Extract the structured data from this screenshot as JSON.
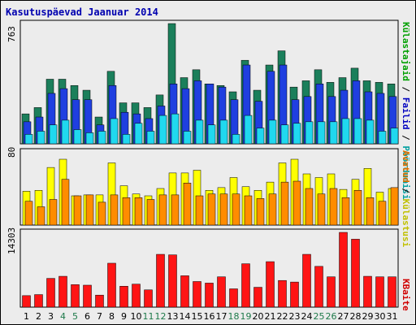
{
  "title": "Kasutuspäevad Jaanuar 2014",
  "legend": {
    "top": [
      {
        "text": "Külastajaid",
        "color": "#00a000"
      },
      {
        "text": " / ",
        "color": "#000000"
      },
      {
        "text": "Failid",
        "color": "#0000c0"
      },
      {
        "text": " / ",
        "color": "#000000"
      },
      {
        "text": "Pöördumisi",
        "color": "#00a0a0"
      }
    ],
    "middle": [
      {
        "text": "Avatud",
        "color": "#e07000"
      },
      {
        "text": " / ",
        "color": "#000000"
      },
      {
        "text": "Külastusi",
        "color": "#c0c000"
      }
    ],
    "bottom": [
      {
        "text": "KBaite",
        "color": "#d00000"
      }
    ]
  },
  "colors": {
    "hits": "#1b7f5b",
    "files": "#1f3fe0",
    "pages": "#20d8ef",
    "visits": "#ffff00",
    "sites": "#ff8c00",
    "kbytes": "#ff1414",
    "weekend_label": "#1e7a4a"
  },
  "chart_data": [
    {
      "type": "bar",
      "title": "Kasutuspäevad Jaanuar 2014",
      "ymax_label": "763",
      "ylim": [
        0,
        763
      ],
      "categories": [
        "1",
        "2",
        "3",
        "4",
        "5",
        "6",
        "7",
        "8",
        "9",
        "10",
        "11",
        "12",
        "13",
        "14",
        "15",
        "16",
        "17",
        "18",
        "19",
        "20",
        "21",
        "22",
        "23",
        "24",
        "25",
        "26",
        "27",
        "28",
        "29",
        "30",
        "31"
      ],
      "weekend_days": [
        "4",
        "5",
        "11",
        "12",
        "18",
        "19",
        "25",
        "26"
      ],
      "series": [
        {
          "name": "Pöördumisi",
          "color_key": "hits",
          "values": [
            190,
            230,
            410,
            410,
            370,
            340,
            170,
            460,
            260,
            260,
            230,
            310,
            763,
            420,
            470,
            380,
            370,
            330,
            530,
            340,
            500,
            590,
            360,
            400,
            470,
            390,
            420,
            480,
            400,
            390,
            380
          ]
        },
        {
          "name": "Failid",
          "color_key": "files",
          "values": [
            140,
            170,
            320,
            350,
            280,
            280,
            120,
            370,
            200,
            190,
            160,
            240,
            380,
            350,
            400,
            380,
            360,
            280,
            500,
            270,
            460,
            500,
            280,
            300,
            380,
            300,
            340,
            400,
            330,
            320,
            300
          ]
        },
        {
          "name": "Külastajaid",
          "color_key": "pages",
          "values": [
            60,
            80,
            120,
            150,
            90,
            70,
            80,
            160,
            60,
            130,
            80,
            180,
            190,
            80,
            150,
            120,
            150,
            60,
            180,
            100,
            150,
            120,
            130,
            140,
            140,
            140,
            160,
            160,
            150,
            80,
            100
          ]
        }
      ]
    },
    {
      "type": "bar",
      "ymax_label": "80",
      "ylim": [
        0,
        80
      ],
      "categories": [
        "1",
        "2",
        "3",
        "4",
        "5",
        "6",
        "7",
        "8",
        "9",
        "10",
        "11",
        "12",
        "13",
        "14",
        "15",
        "16",
        "17",
        "18",
        "19",
        "20",
        "21",
        "22",
        "23",
        "24",
        "25",
        "26",
        "27",
        "28",
        "29",
        "30",
        "31"
      ],
      "series": [
        {
          "name": "Külastusi",
          "color_key": "visits",
          "values": [
            37,
            38,
            63,
            72,
            32,
            33,
            33,
            68,
            43,
            34,
            32,
            40,
            57,
            57,
            60,
            38,
            41,
            52,
            42,
            38,
            47,
            68,
            72,
            56,
            52,
            56,
            39,
            50,
            62,
            36,
            40
          ]
        },
        {
          "name": "Avatud",
          "color_key": "sites",
          "values": [
            26,
            20,
            28,
            50,
            32,
            33,
            25,
            33,
            30,
            30,
            28,
            33,
            33,
            46,
            32,
            34,
            34,
            34,
            32,
            29,
            34,
            47,
            48,
            40,
            34,
            40,
            30,
            38,
            30,
            26,
            41
          ]
        }
      ]
    },
    {
      "type": "bar",
      "ymax_label": "14303",
      "ylim": [
        0,
        14303
      ],
      "categories": [
        "1",
        "2",
        "3",
        "4",
        "5",
        "6",
        "7",
        "8",
        "9",
        "10",
        "11",
        "12",
        "13",
        "14",
        "15",
        "16",
        "17",
        "18",
        "19",
        "20",
        "21",
        "22",
        "23",
        "24",
        "25",
        "26",
        "27",
        "28",
        "29",
        "30",
        "31"
      ],
      "series": [
        {
          "name": "KBaite",
          "color_key": "kbytes",
          "values": [
            2200,
            2400,
            5500,
            5900,
            4300,
            4200,
            2300,
            8400,
            4000,
            4400,
            3300,
            10100,
            10000,
            6000,
            4900,
            4600,
            5800,
            3500,
            8300,
            3800,
            8700,
            5100,
            4800,
            10100,
            7800,
            5800,
            14303,
            13000,
            5900,
            5800,
            5800
          ]
        }
      ]
    }
  ]
}
